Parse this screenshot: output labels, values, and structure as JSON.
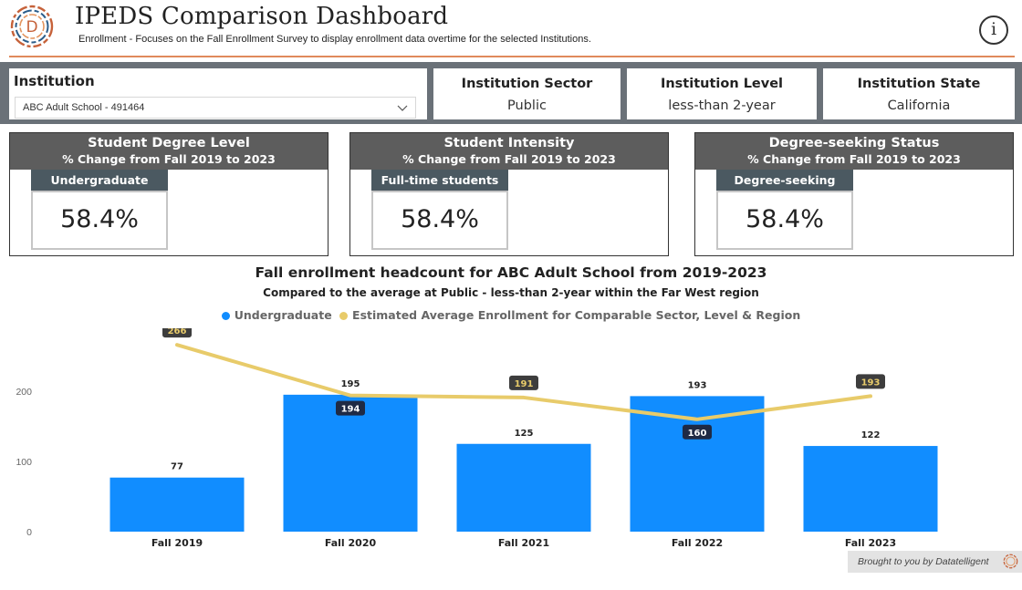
{
  "header": {
    "title": "IPEDS Comparison Dashboard",
    "subtitle": "Enrollment - Focuses on the Fall Enrollment Survey to display enrollment data overtime for the selected Institutions.",
    "info_label": "i",
    "logo_letter": "D"
  },
  "filters": {
    "institution": {
      "label": "Institution",
      "selected": "ABC Adult School - 491464"
    },
    "sector": {
      "label": "Institution Sector",
      "value": "Public"
    },
    "level": {
      "label": "Institution Level",
      "value": "less-than 2-year"
    },
    "state": {
      "label": "Institution State",
      "value": "California"
    }
  },
  "kpis": [
    {
      "title": "Student Degree Level",
      "subtitle": "% Change from Fall 2019 to 2023",
      "tag": "Undergraduate",
      "value": "58.4%"
    },
    {
      "title": "Student Intensity",
      "subtitle": "% Change from Fall 2019 to 2023",
      "tag": "Full-time students",
      "value": "58.4%"
    },
    {
      "title": "Degree-seeking Status",
      "subtitle": "% Change from Fall 2019 to 2023",
      "tag": "Degree-seeking",
      "value": "58.4%"
    }
  ],
  "chart_data": {
    "type": "bar",
    "title": "Fall enrollment headcount for ABC Adult School from 2019-2023",
    "subtitle": "Compared to the average at Public - less-than 2-year within the Far West region",
    "categories": [
      "Fall 2019",
      "Fall 2020",
      "Fall 2021",
      "Fall 2022",
      "Fall 2023"
    ],
    "series": [
      {
        "name": "Undergraduate",
        "kind": "bar",
        "color": "#118dff",
        "values": [
          77,
          195,
          125,
          193,
          122
        ]
      },
      {
        "name": "Estimated Average Enrollment for Comparable Sector, Level & Region",
        "kind": "line",
        "color": "#e8cb6a",
        "values": [
          266,
          194,
          191,
          160,
          193
        ]
      }
    ],
    "yticks": [
      0,
      100,
      200
    ],
    "ylim": [
      0,
      300
    ],
    "xlabel": "",
    "ylabel": "",
    "legend": "top-center"
  },
  "footer": {
    "credit": "Brought to you by Datatelligent"
  },
  "colors": {
    "accent": "#e08a5c",
    "header_gray": "#5d5d5d",
    "tag_slate": "#4b5961",
    "filter_bar": "#6a7178",
    "bar_blue": "#118dff",
    "line_gold": "#e8cb6a"
  }
}
